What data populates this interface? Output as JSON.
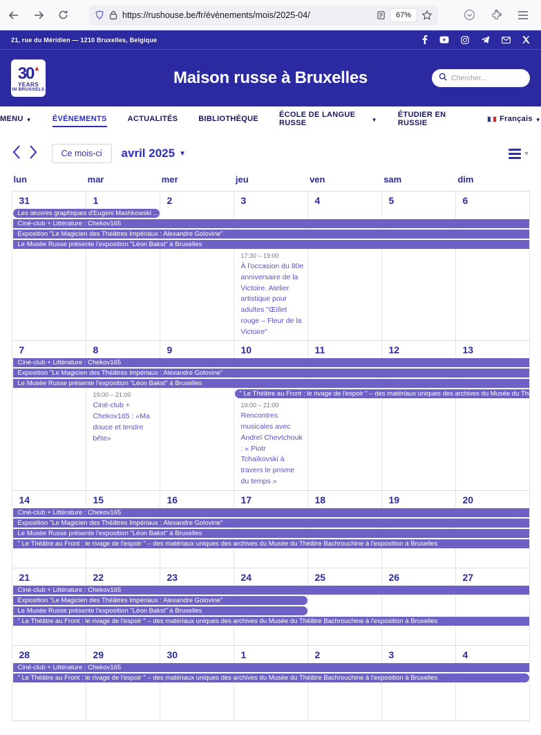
{
  "browser": {
    "url": "https://rushouse.be/fr/évènements/mois/2025-04/",
    "zoom": "67%"
  },
  "topbar": {
    "address": "21, rue du Méridien — 1210 Bruxelles, Belgique",
    "social_icons": [
      "facebook",
      "youtube",
      "instagram",
      "telegram",
      "email",
      "x-twitter"
    ]
  },
  "header": {
    "logo": {
      "line1": "30",
      "line2": "YEARS",
      "line3": "IN BRUSSELS"
    },
    "title": "Maison russe à Bruxelles",
    "search_placeholder": "Chercher..."
  },
  "nav": {
    "items": [
      {
        "label": "MENU",
        "dropdown": true
      },
      {
        "label": "ÉVÉNEMENTS",
        "active": true
      },
      {
        "label": "ACTUALITÉS"
      },
      {
        "label": "BIBLIOTHÈQUE"
      },
      {
        "label": "ÉCOLE DE LANGUE RUSSE",
        "dropdown": true
      },
      {
        "label": "ÉTUDIER EN RUSSIE"
      },
      {
        "label": "Français",
        "dropdown": true,
        "flag": true
      }
    ]
  },
  "toolbar": {
    "this_month": "Ce mois-ci",
    "month_title": "avril 2025"
  },
  "calendar": {
    "day_headers": [
      "lun",
      "mar",
      "mer",
      "jeu",
      "ven",
      "sam",
      "dim"
    ],
    "weeks": [
      {
        "days": [
          "31",
          "1",
          "2",
          "3",
          "4",
          "5",
          "6"
        ],
        "bars": [
          {
            "row": 2,
            "col": 1,
            "span": 2,
            "rl": true,
            "rr": true,
            "label": "Les œuvres graphiques d'Eugeni Mashkowski ..."
          },
          {
            "row": 3,
            "col": 1,
            "span": 7,
            "label": "Ciné-club + Littérature : Chekov165"
          },
          {
            "row": 4,
            "col": 1,
            "span": 7,
            "label": "Exposition \"Le Magicien des Théâtres Impériaux : Alexandre Golovine\""
          },
          {
            "row": 5,
            "col": 1,
            "span": 7,
            "label": "Le Musée Russe présente l'exposition \"Léon Bakst\" à Bruxelles"
          }
        ],
        "events": [
          {
            "row": 6,
            "col": 4,
            "time": "17:30 – 19:00",
            "title": "À l'occasion du 80e anniversaire de la Victoire. Atelier artistique pour adultes \"Œillet rouge – Fleur de la Victoire\""
          }
        ]
      },
      {
        "days": [
          "7",
          "8",
          "9",
          "10",
          "11",
          "12",
          "13"
        ],
        "bars": [
          {
            "row": 2,
            "col": 1,
            "span": 7,
            "label": "Ciné-club + Littérature : Chekov165"
          },
          {
            "row": 3,
            "col": 1,
            "span": 7,
            "label": "Exposition \"Le Magicien des Théâtres Impériaux : Alexandre Golovine\""
          },
          {
            "row": 4,
            "col": 1,
            "span": 7,
            "label": "Le Musée Russe présente l'exposition \"Léon Bakst\" à Bruxelles"
          },
          {
            "row": 5,
            "col": 4,
            "span": 4,
            "rl": true,
            "label": "\" Le Théâtre au Front : le rivage de l'espoir \" – des matériaux uniques des archives du Musée du Théâ..."
          }
        ],
        "events": [
          {
            "row": 5,
            "col": 2,
            "rowspan": 2,
            "time": "19:00 – 21:00",
            "title": "Ciné-club + Chekov165 : «Ma douce et tendre bête»"
          },
          {
            "row": 6,
            "col": 4,
            "time": "19:00 – 21:00",
            "title": "Rencontres musicales avec Andreï Chevtchouk : « Piotr Tchaïkovski à travers le prisme du temps »"
          }
        ]
      },
      {
        "days": [
          "14",
          "15",
          "16",
          "17",
          "18",
          "19",
          "20"
        ],
        "bars": [
          {
            "row": 2,
            "col": 1,
            "span": 7,
            "label": "Ciné-club + Littérature : Chekov165"
          },
          {
            "row": 3,
            "col": 1,
            "span": 7,
            "label": "Exposition \"Le Magicien des Théâtres Impériaux : Alexandre Golovine\""
          },
          {
            "row": 4,
            "col": 1,
            "span": 7,
            "label": "Le Musée Russe présente l'exposition \"Léon Bakst\" à Bruxelles"
          },
          {
            "row": 5,
            "col": 1,
            "span": 7,
            "label": "\" Le Théâtre au Front : le rivage de l'espoir \" – des matériaux uniques des archives du Musée du Théâtre Bachrouchine à l'exposition à Bruxelles"
          }
        ],
        "events": []
      },
      {
        "days": [
          "21",
          "22",
          "23",
          "24",
          "25",
          "26",
          "27"
        ],
        "bars": [
          {
            "row": 2,
            "col": 1,
            "span": 7,
            "label": "Ciné-club + Littérature : Chekov165"
          },
          {
            "row": 3,
            "col": 1,
            "span": 4,
            "rr": true,
            "label": "Exposition \"Le Magicien des Théâtres Impériaux : Alexandre Golovine\""
          },
          {
            "row": 4,
            "col": 1,
            "span": 4,
            "rr": true,
            "label": "Le Musée Russe présente l'exposition \"Léon Bakst\" à Bruxelles"
          },
          {
            "row": 5,
            "col": 1,
            "span": 7,
            "label": "\" Le Théâtre au Front : le rivage de l'espoir \" – des matériaux uniques des archives du Musée du Théâtre Bachrouchine à l'exposition à Bruxelles"
          }
        ],
        "events": []
      },
      {
        "days": [
          "28",
          "29",
          "30",
          "1",
          "2",
          "3",
          "4"
        ],
        "bars": [
          {
            "row": 2,
            "col": 1,
            "span": 7,
            "label": "Ciné-club + Littérature : Chekov165"
          },
          {
            "row": 3,
            "col": 1,
            "span": 7,
            "rr": true,
            "label": "\" Le Théâtre au Front : le rivage de l'espoir \" – des matériaux uniques des archives du Musée du Théâtre Bachrouchine à l'exposition à Bruxelles"
          }
        ],
        "events": []
      }
    ]
  }
}
